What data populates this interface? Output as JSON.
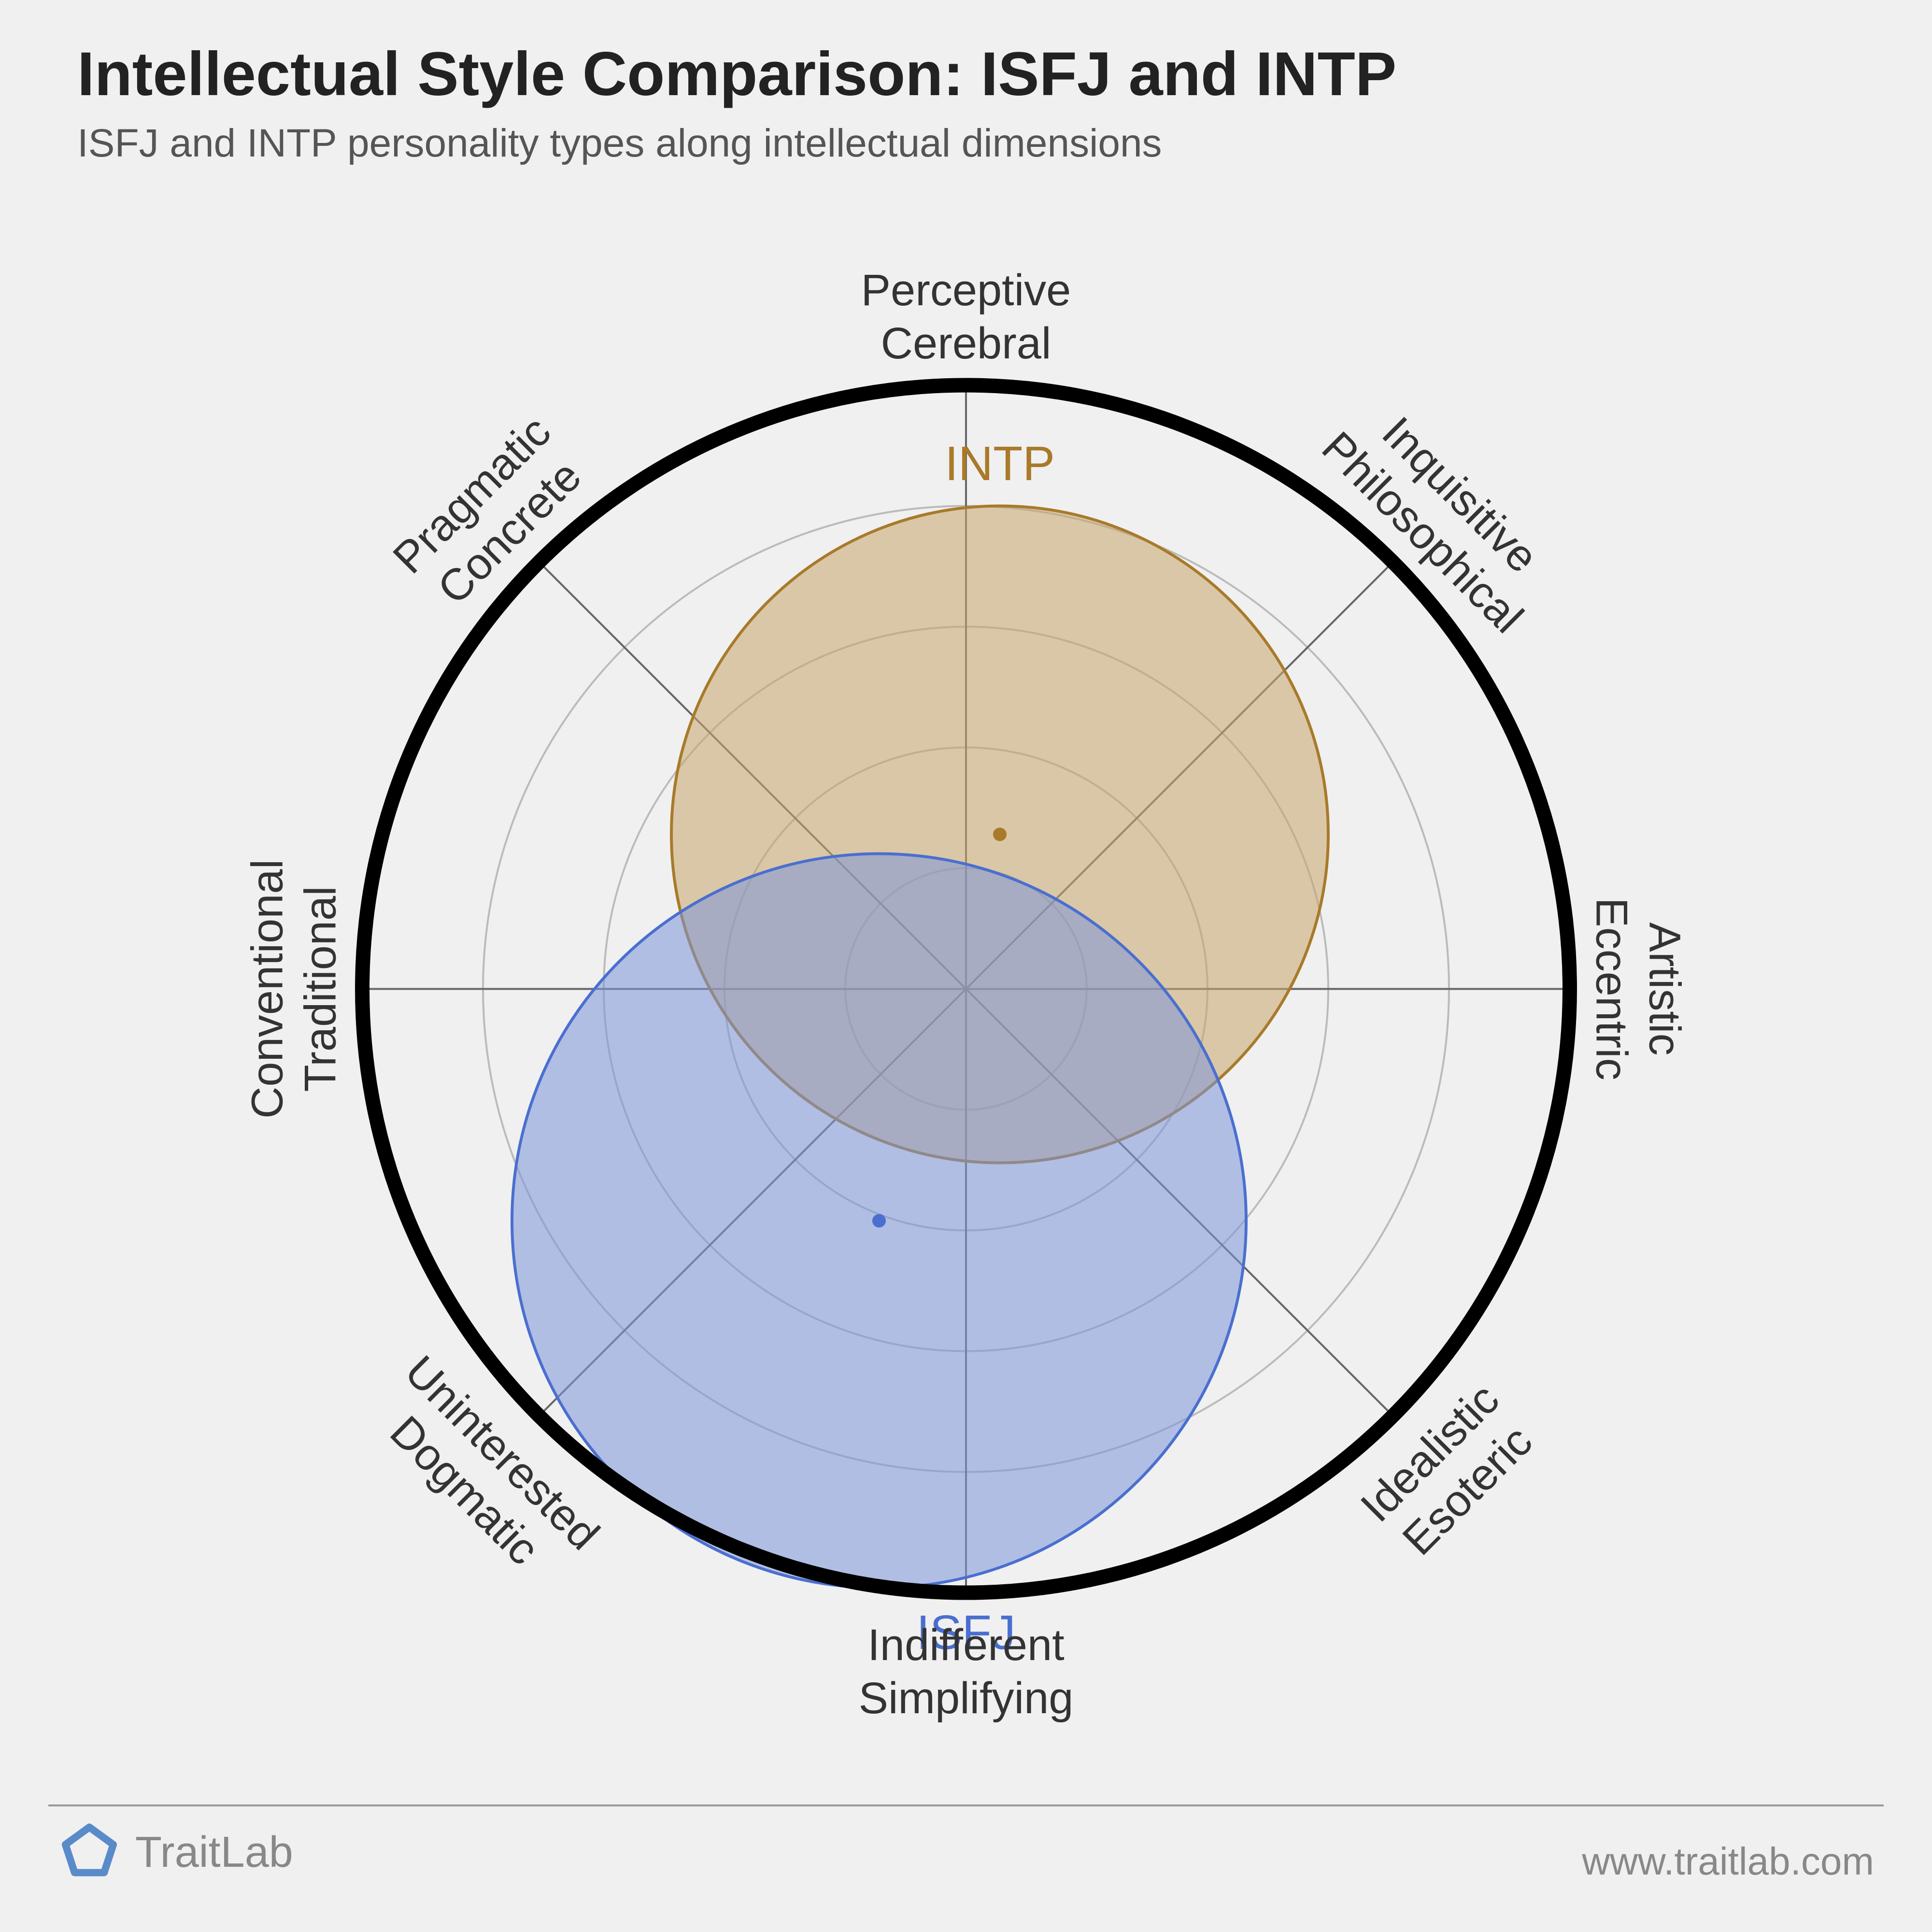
{
  "title": "Intellectual Style Comparison: ISFJ and INTP",
  "subtitle": "ISFJ and INTP personality types along intellectual dimensions",
  "footer_brand": "TraitLab",
  "footer_url": "www.traitlab.com",
  "chart": {
    "type": "radar-scatter",
    "background_color": "#f0f0f0",
    "outer_ring": {
      "radius": 1250,
      "stroke": "#000000",
      "stroke_width": 30
    },
    "grid_rings": {
      "radii": [
        250,
        500,
        750,
        1000,
        1250
      ],
      "stroke": "#bbbbbb",
      "stroke_width": 4
    },
    "spokes": {
      "count": 8,
      "stroke": "#666666",
      "stroke_width": 4,
      "length": 1250
    },
    "axis_labels": [
      {
        "angle_deg": -90,
        "line1": "Perceptive",
        "line2": "Cerebral",
        "flip": false
      },
      {
        "angle_deg": -45,
        "line1": "Inquisitive",
        "line2": "Philosophical",
        "flip": false
      },
      {
        "angle_deg": 0,
        "line1": "Artistic",
        "line2": "Eccentric",
        "flip": false
      },
      {
        "angle_deg": 45,
        "line1": "Idealistic",
        "line2": "Esoteric",
        "flip": true
      },
      {
        "angle_deg": 90,
        "line1": "Indifferent",
        "line2": "Simplifying",
        "flip": true
      },
      {
        "angle_deg": 135,
        "line1": "Uninterested",
        "line2": "Dogmatic",
        "flip": true
      },
      {
        "angle_deg": 180,
        "line1": "Conventional",
        "line2": "Traditional",
        "flip": false
      },
      {
        "angle_deg": -135,
        "line1": "Pragmatic",
        "line2": "Concrete",
        "flip": false
      }
    ],
    "axis_label_fontsize": 92,
    "axis_label_color": "#333333",
    "series": [
      {
        "name": "INTP",
        "label": "INTP",
        "center_x": 70,
        "center_y": -320,
        "radius": 680,
        "fill": "#c9a66b",
        "fill_opacity": 0.55,
        "stroke": "#a87a2a",
        "stroke_width": 6,
        "dot_fill": "#a87a2a",
        "dot_radius": 14,
        "label_color": "#a87a2a",
        "label_fontsize": 100,
        "label_dx": 0,
        "label_dy": -760
      },
      {
        "name": "ISFJ",
        "label": "ISFJ",
        "center_x": -180,
        "center_y": 480,
        "radius": 760,
        "fill": "#7d96d9",
        "fill_opacity": 0.55,
        "stroke": "#4a6fd0",
        "stroke_width": 6,
        "dot_fill": "#4a6fd0",
        "dot_radius": 14,
        "label_color": "#4a6fd0",
        "label_fontsize": 100,
        "label_dx": 180,
        "label_dy": 860
      }
    ]
  },
  "logo": {
    "stroke": "#5a8bc9",
    "stroke_width": 14
  }
}
